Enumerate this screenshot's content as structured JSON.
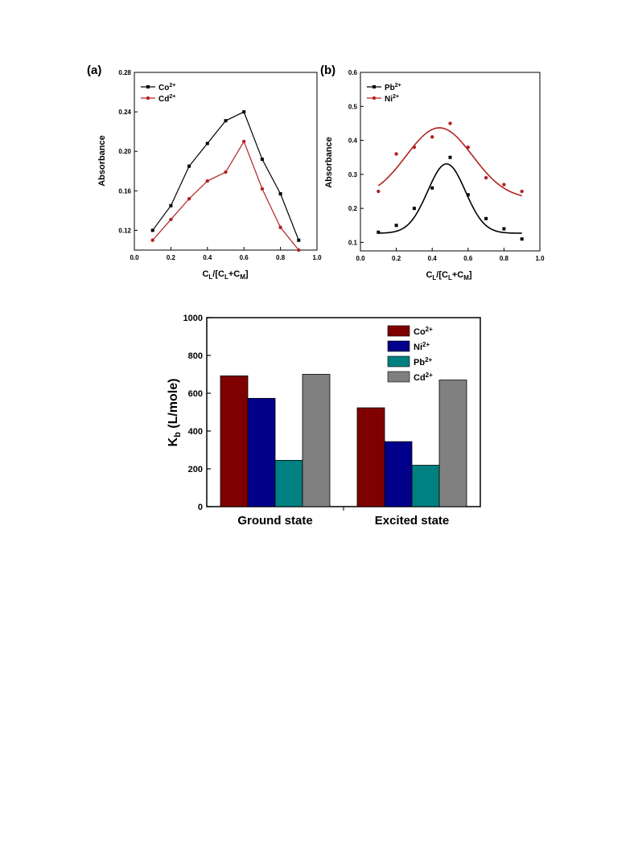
{
  "chart_data": [
    {
      "panel_label": "(a)",
      "type": "line",
      "xlabel": "C_L/[C_L+C_M]",
      "ylabel": "Absorbance",
      "xlim": [
        0.0,
        1.0
      ],
      "ylim": [
        0.1,
        0.28
      ],
      "xticks": [
        "0.0",
        "0.2",
        "0.4",
        "0.6",
        "0.8",
        "1.0"
      ],
      "yticks": [
        "0.12",
        "0.16",
        "0.20",
        "0.24",
        "0.28"
      ],
      "legend_position": "top-left",
      "series": [
        {
          "name": "Co2+",
          "ion": "Co",
          "charge": "2+",
          "color": "#000000",
          "x": [
            0.1,
            0.2,
            0.3,
            0.4,
            0.5,
            0.6,
            0.7,
            0.8,
            0.9
          ],
          "y": [
            0.12,
            0.145,
            0.185,
            0.208,
            0.231,
            0.24,
            0.192,
            0.157,
            0.11
          ]
        },
        {
          "name": "Cd2+",
          "ion": "Cd",
          "charge": "2+",
          "color": "#b22222",
          "x": [
            0.1,
            0.2,
            0.3,
            0.4,
            0.5,
            0.6,
            0.7,
            0.8,
            0.9
          ],
          "y": [
            0.11,
            0.131,
            0.152,
            0.17,
            0.179,
            0.21,
            0.162,
            0.123,
            0.1
          ]
        }
      ]
    },
    {
      "panel_label": "(b)",
      "type": "scatter",
      "xlabel": "C_L/[C_L+C_M]",
      "ylabel": "Absorbance",
      "xlim": [
        0.0,
        1.0
      ],
      "ylim": [
        0.075,
        0.6
      ],
      "xticks": [
        "0.0",
        "0.2",
        "0.4",
        "0.6",
        "0.8",
        "1.0"
      ],
      "yticks": [
        "0.1",
        "0.2",
        "0.3",
        "0.4",
        "0.5",
        "0.6"
      ],
      "legend_position": "top-left",
      "series": [
        {
          "name": "Pb2+",
          "ion": "Pb",
          "charge": "2+",
          "color": "#000000",
          "x": [
            0.1,
            0.2,
            0.3,
            0.4,
            0.5,
            0.6,
            0.7,
            0.8,
            0.9
          ],
          "y": [
            0.13,
            0.15,
            0.2,
            0.26,
            0.35,
            0.24,
            0.17,
            0.14,
            0.11
          ],
          "fit": {
            "baseline": 0.127,
            "amplitude": 0.204,
            "center": 0.48,
            "width": 0.105
          }
        },
        {
          "name": "Ni2+",
          "ion": "Ni",
          "charge": "2+",
          "color": "#b22222",
          "x": [
            0.1,
            0.2,
            0.3,
            0.4,
            0.5,
            0.6,
            0.7,
            0.8,
            0.9
          ],
          "y": [
            0.25,
            0.36,
            0.38,
            0.41,
            0.45,
            0.38,
            0.29,
            0.27,
            0.25
          ],
          "fit": {
            "baseline": 0.228,
            "amplitude": 0.209,
            "center": 0.44,
            "width": 0.185
          }
        }
      ]
    },
    {
      "type": "bar",
      "categories": [
        "Ground state",
        "Excited state"
      ],
      "ylabel": "K_b (L/mole)",
      "ylim": [
        0,
        1000
      ],
      "yticks": [
        "0",
        "200",
        "400",
        "600",
        "800",
        "1000"
      ],
      "legend_position": "top-right",
      "series": [
        {
          "name": "Co2+",
          "ion": "Co",
          "charge": "2+",
          "color": "#7f0000",
          "values": [
            692,
            523
          ]
        },
        {
          "name": "Ni2+",
          "ion": "Ni",
          "charge": "2+",
          "color": "#00008b",
          "values": [
            573,
            344
          ]
        },
        {
          "name": "Pb2+",
          "ion": "Pb",
          "charge": "2+",
          "color": "#008080",
          "values": [
            245,
            219
          ]
        },
        {
          "name": "Cd2+",
          "ion": "Cd",
          "charge": "2+",
          "color": "#808080",
          "values": [
            700,
            670
          ]
        }
      ]
    }
  ]
}
